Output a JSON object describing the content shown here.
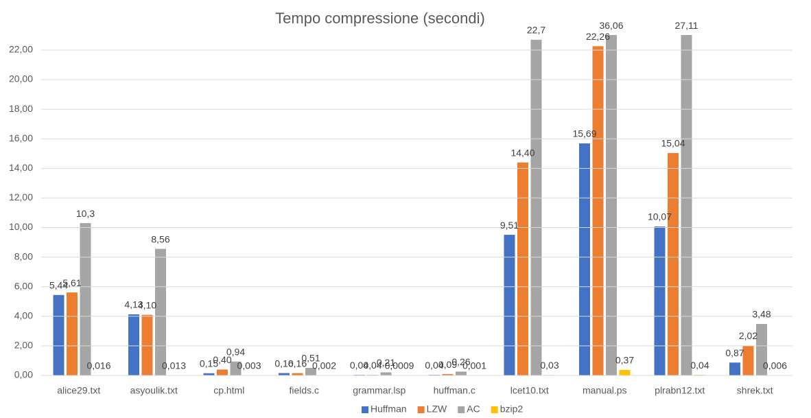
{
  "chart_data": {
    "type": "bar",
    "title": "Tempo compressione (secondi)",
    "categories": [
      "alice29.txt",
      "asyoulik.txt",
      "cp.html",
      "fields.c",
      "grammar.lsp",
      "huffman.c",
      "lcet10.txt",
      "manual.ps",
      "plrabn12.txt",
      "shrek.txt"
    ],
    "series": [
      {
        "name": "Huffman",
        "color": "#4472c4",
        "values": [
          5.44,
          4.13,
          0.15,
          0.16,
          0.04,
          0.04,
          9.51,
          15.69,
          10.07,
          0.87
        ],
        "value_labels": [
          "5,44",
          "4,13",
          "0,15",
          "0,16",
          "0,04",
          "0,04",
          "9,51",
          "15,69",
          "10,07",
          "0,87"
        ]
      },
      {
        "name": "LZW",
        "color": "#ed7d31",
        "values": [
          5.61,
          4.1,
          0.4,
          0.16,
          0.04,
          0.09,
          14.4,
          22.26,
          15.04,
          2.02
        ],
        "value_labels": [
          "5,61",
          "4,10",
          "0,40",
          "0,16",
          "0,04",
          "0,09",
          "14,40",
          "22,26",
          "15,04",
          "2,02"
        ]
      },
      {
        "name": "AC",
        "color": "#a5a5a5",
        "values": [
          10.3,
          8.56,
          0.94,
          0.51,
          0.21,
          0.26,
          22.7,
          36.06,
          27.11,
          3.48
        ],
        "value_labels": [
          "10,3",
          "8,56",
          "0,94",
          "0,51",
          "0,21",
          "0,26",
          "22,7",
          "36,06",
          "27,11",
          "3,48"
        ]
      },
      {
        "name": "bzip2",
        "color": "#ffc000",
        "values": [
          0.016,
          0.013,
          0.003,
          0.002,
          0.0009,
          0.001,
          0.03,
          0.37,
          0.04,
          0.006
        ],
        "value_labels": [
          "0,016",
          "0,013",
          "0,003",
          "0,002",
          "0,0009",
          "0,001",
          "0,03",
          "0,37",
          "0,04",
          "0,006"
        ]
      }
    ],
    "ylim": [
      0,
      23
    ],
    "yticks": [
      {
        "value": 0,
        "label": "0,00"
      },
      {
        "value": 2,
        "label": "2,00"
      },
      {
        "value": 4,
        "label": "4,00"
      },
      {
        "value": 6,
        "label": "6,00"
      },
      {
        "value": 8,
        "label": "8,00"
      },
      {
        "value": 10,
        "label": "10,00"
      },
      {
        "value": 12,
        "label": "12,00"
      },
      {
        "value": 14,
        "label": "14,00"
      },
      {
        "value": 16,
        "label": "16,00"
      },
      {
        "value": 18,
        "label": "18,00"
      },
      {
        "value": 20,
        "label": "20,00"
      },
      {
        "value": 22,
        "label": "22,00"
      }
    ],
    "grid": true,
    "legend": "bottom"
  }
}
